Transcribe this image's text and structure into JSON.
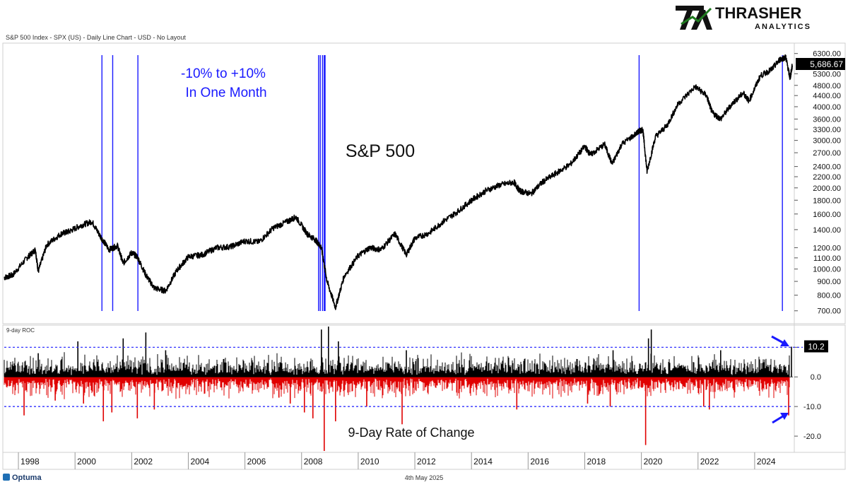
{
  "header": {
    "caption": "S&P 500 Index - SPX (US) - Daily Line Chart - USD - No Layout"
  },
  "logo": {
    "mark": "TA",
    "name": "THRASHER",
    "sub": "ANALYTICS",
    "mark_color": "#1f7a1f"
  },
  "footer": {
    "date": "4th May 2025",
    "brand": "Optuma"
  },
  "chart_data": [
    {
      "type": "line",
      "title": "S&P 500",
      "annotation": "-10% to +10%\nIn One Month",
      "annotation_lines": [
        "-10% to +10%",
        "In One Month"
      ],
      "scale": "log",
      "ylim": [
        650,
        6600
      ],
      "y_ticks": [
        "6300.00",
        "5300.00",
        "4800.00",
        "4400.00",
        "4000.00",
        "3600.00",
        "3300.00",
        "3000.00",
        "2700.00",
        "2400.00",
        "2200.00",
        "2000.00",
        "1800.00",
        "1600.00",
        "1400.00",
        "1200.00",
        "1100.00",
        "1000.00",
        "900.00",
        "800.00",
        "700.00"
      ],
      "y_tick_values": [
        6300,
        5300,
        4800,
        4400,
        4000,
        3600,
        3300,
        3000,
        2700,
        2400,
        2200,
        2000,
        1800,
        1600,
        1400,
        1200,
        1100,
        1000,
        900,
        800,
        700
      ],
      "last_value": "5,686.67",
      "line_color": "#000000",
      "signal_color": "#1a1aff",
      "signal_years": [
        2000.95,
        2001.33,
        2002.22,
        2008.6,
        2008.66,
        2008.74,
        2008.8,
        2008.83,
        2019.92,
        2024.98
      ],
      "series": [
        {
          "x": [
            1997.5,
            1997.8,
            1998.3,
            1998.6,
            1998.7,
            1999.0,
            1999.5,
            1999.8,
            2000.2,
            2000.6,
            2000.9,
            2001.2,
            2001.5,
            2001.7,
            2002.0,
            2002.2,
            2002.5,
            2002.8,
            2003.2,
            2003.6,
            2004.0,
            2004.5,
            2005.0,
            2005.5,
            2006.0,
            2006.5,
            2007.0,
            2007.5,
            2007.8,
            2008.2,
            2008.5,
            2008.7,
            2008.9,
            2009.2,
            2009.5,
            2010.0,
            2010.4,
            2010.8,
            2011.3,
            2011.7,
            2012.0,
            2012.5,
            2013.0,
            2013.5,
            2014.0,
            2014.5,
            2015.0,
            2015.5,
            2015.7,
            2016.1,
            2016.5,
            2017.0,
            2017.5,
            2018.0,
            2018.2,
            2018.7,
            2018.97,
            2019.3,
            2019.9,
            2020.05,
            2020.2,
            2020.5,
            2020.9,
            2021.3,
            2021.9,
            2022.3,
            2022.5,
            2022.8,
            2023.2,
            2023.6,
            2023.8,
            2024.2,
            2024.6,
            2024.9,
            2025.1,
            2025.25,
            2025.33
          ],
          "y": [
            930,
            950,
            1100,
            1180,
            980,
            1230,
            1350,
            1380,
            1450,
            1500,
            1320,
            1180,
            1220,
            1050,
            1150,
            1110,
            950,
            850,
            830,
            990,
            1110,
            1130,
            1200,
            1210,
            1270,
            1260,
            1420,
            1500,
            1560,
            1350,
            1280,
            1200,
            900,
            720,
            940,
            1120,
            1200,
            1180,
            1350,
            1130,
            1300,
            1360,
            1500,
            1630,
            1800,
            1950,
            2050,
            2100,
            1950,
            1900,
            2100,
            2270,
            2450,
            2850,
            2650,
            2900,
            2450,
            2900,
            3230,
            3300,
            2300,
            3100,
            3400,
            4100,
            4750,
            4400,
            3800,
            3600,
            4100,
            4500,
            4200,
            5200,
            5500,
            6000,
            6100,
            5100,
            5686.67
          ]
        }
      ]
    },
    {
      "type": "bar",
      "title": "9-Day Rate of Change",
      "panel_label": "9-day ROC",
      "ylim": [
        -25,
        17
      ],
      "y_ticks": [
        "10.0",
        "0.0",
        "-10.0",
        "-20.0"
      ],
      "y_tick_values": [
        10,
        0,
        -10,
        -20
      ],
      "threshold_upper": 10,
      "threshold_lower": -10,
      "last_value": "10.2",
      "positive_color": "#000000",
      "negative_color": "#e00000",
      "threshold_color": "#1a1aff",
      "x_ticks": [
        "1998",
        "2000",
        "2002",
        "2004",
        "2006",
        "2008",
        "2010",
        "2012",
        "2014",
        "2016",
        "2018",
        "2020",
        "2022",
        "2024"
      ],
      "spikes": {
        "x": [
          1998.2,
          1998.7,
          1999.3,
          2000.1,
          2000.3,
          2001.0,
          2001.3,
          2001.7,
          2002.2,
          2002.5,
          2002.8,
          2003.2,
          2007.2,
          2007.6,
          2008.1,
          2008.4,
          2008.7,
          2008.8,
          2008.95,
          2009.2,
          2009.3,
          2010.3,
          2011.55,
          2011.7,
          2015.6,
          2018.1,
          2018.9,
          2019.0,
          2020.15,
          2020.25,
          2020.35,
          2022.2,
          2022.4,
          2022.8,
          2025.2,
          2025.3
        ],
        "y": [
          -13,
          8,
          -8,
          12,
          -9,
          -15,
          -12,
          13,
          -14,
          15,
          -11,
          9,
          -7,
          -9,
          -12,
          -14,
          16,
          -25,
          17,
          -15,
          12,
          -10,
          -16,
          9,
          -11,
          -9,
          -10,
          9,
          -23,
          13,
          16,
          -10,
          -11,
          9,
          -13,
          10.2
        ]
      },
      "noise_amplitude": 5
    }
  ]
}
